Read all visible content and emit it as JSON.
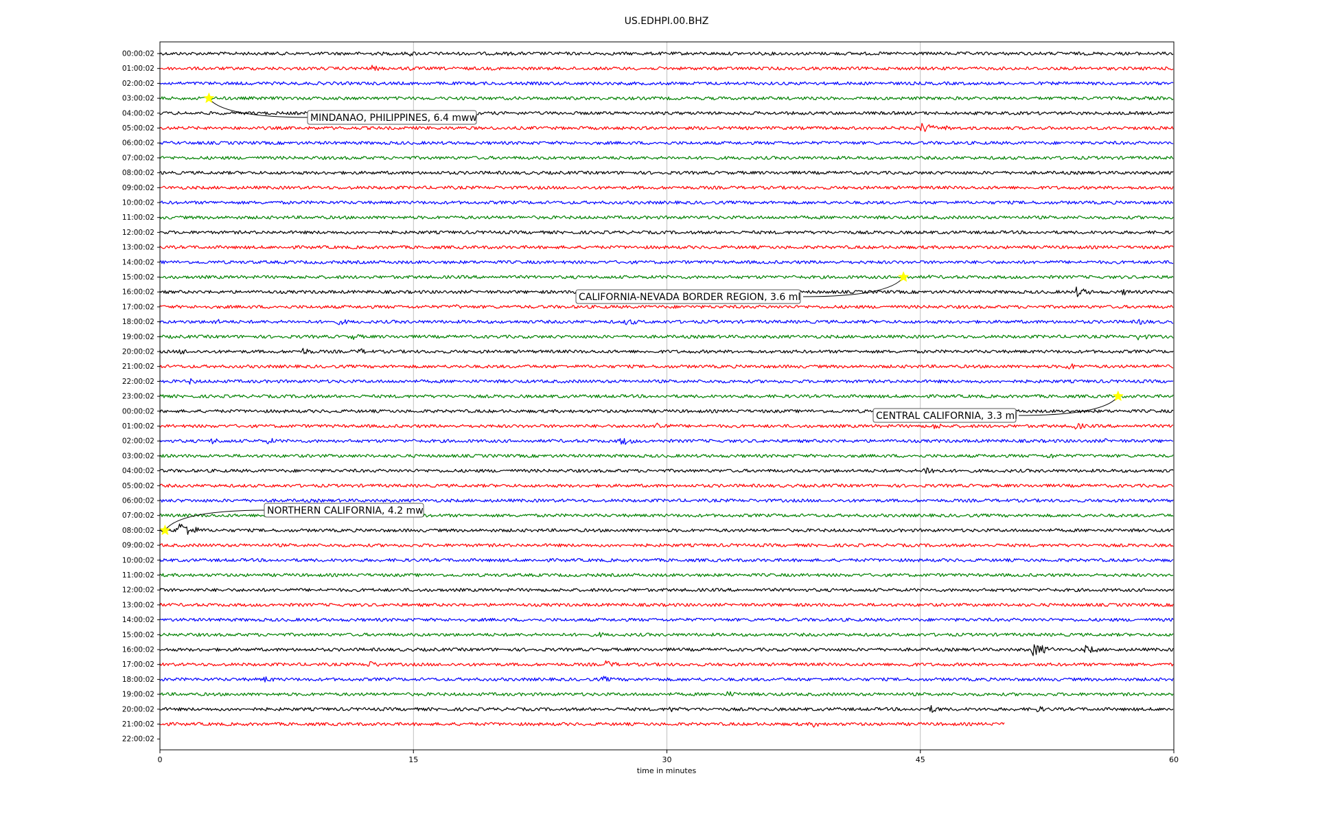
{
  "chart_data": {
    "type": "line",
    "title": "US.EDHPI.00.BHZ",
    "xlabel": "time in minutes",
    "ylabel": "",
    "xlim": [
      0,
      60
    ],
    "x_ticks": [
      0,
      15,
      30,
      45,
      60
    ],
    "x_tick_labels": [
      "0",
      "15",
      "30",
      "45",
      "60"
    ],
    "grid": "vertical",
    "line_colors": [
      "#000000",
      "#ff0000",
      "#0000ff",
      "#008000"
    ],
    "row_labels": [
      "00:00:02",
      "01:00:02",
      "02:00:02",
      "03:00:02",
      "04:00:02",
      "05:00:02",
      "06:00:02",
      "07:00:02",
      "08:00:02",
      "09:00:02",
      "10:00:02",
      "11:00:02",
      "12:00:02",
      "13:00:02",
      "14:00:02",
      "15:00:02",
      "16:00:02",
      "17:00:02",
      "18:00:02",
      "19:00:02",
      "20:00:02",
      "21:00:02",
      "22:00:02",
      "23:00:02",
      "00:00:02",
      "01:00:02",
      "02:00:02",
      "03:00:02",
      "04:00:02",
      "05:00:02",
      "06:00:02",
      "07:00:02",
      "08:00:02",
      "09:00:02",
      "10:00:02",
      "11:00:02",
      "12:00:02",
      "13:00:02",
      "14:00:02",
      "15:00:02",
      "16:00:02",
      "17:00:02",
      "18:00:02",
      "19:00:02",
      "20:00:02",
      "21:00:02",
      "22:00:02"
    ],
    "last_trace_end_minute": 50,
    "bursts": [
      {
        "row": 0,
        "minute": 14.8,
        "amp": 4
      },
      {
        "row": 0,
        "minute": 20.6,
        "amp": 3
      },
      {
        "row": 1,
        "minute": 12.5,
        "amp": 5
      },
      {
        "row": 1,
        "minute": 14.7,
        "amp": 4
      },
      {
        "row": 5,
        "minute": 45.0,
        "amp": 9
      },
      {
        "row": 5,
        "minute": 46.5,
        "amp": 4
      },
      {
        "row": 15,
        "minute": 45.5,
        "amp": 3
      },
      {
        "row": 16,
        "minute": 54.2,
        "amp": 8
      },
      {
        "row": 16,
        "minute": 57.0,
        "amp": 5
      },
      {
        "row": 17,
        "minute": 17.4,
        "amp": 4
      },
      {
        "row": 18,
        "minute": 3.2,
        "amp": 5
      },
      {
        "row": 18,
        "minute": 10.6,
        "amp": 5
      },
      {
        "row": 18,
        "minute": 27.6,
        "amp": 6
      },
      {
        "row": 18,
        "minute": 58.0,
        "amp": 5
      },
      {
        "row": 19,
        "minute": 11.4,
        "amp": 5
      },
      {
        "row": 19,
        "minute": 57.9,
        "amp": 6
      },
      {
        "row": 20,
        "minute": 1.2,
        "amp": 5
      },
      {
        "row": 20,
        "minute": 8.4,
        "amp": 6
      },
      {
        "row": 20,
        "minute": 11.8,
        "amp": 5
      },
      {
        "row": 21,
        "minute": 53.7,
        "amp": 6
      },
      {
        "row": 21,
        "minute": 59.0,
        "amp": 5
      },
      {
        "row": 22,
        "minute": 1.7,
        "amp": 5
      },
      {
        "row": 23,
        "minute": 8.6,
        "amp": 4
      },
      {
        "row": 25,
        "minute": 29.4,
        "amp": 7
      },
      {
        "row": 25,
        "minute": 45.8,
        "amp": 5
      },
      {
        "row": 25,
        "minute": 54.1,
        "amp": 6
      },
      {
        "row": 26,
        "minute": 3.1,
        "amp": 5
      },
      {
        "row": 26,
        "minute": 6.4,
        "amp": 5
      },
      {
        "row": 26,
        "minute": 27.3,
        "amp": 7
      },
      {
        "row": 26,
        "minute": 55.8,
        "amp": 4
      },
      {
        "row": 27,
        "minute": 52.6,
        "amp": 5
      },
      {
        "row": 28,
        "minute": 45.3,
        "amp": 8
      },
      {
        "row": 32,
        "minute": 1.1,
        "amp": 15
      },
      {
        "row": 39,
        "minute": 26.0,
        "amp": 4
      },
      {
        "row": 40,
        "minute": 51.7,
        "amp": 11
      },
      {
        "row": 40,
        "minute": 54.8,
        "amp": 7
      },
      {
        "row": 41,
        "minute": 12.3,
        "amp": 6
      },
      {
        "row": 41,
        "minute": 26.4,
        "amp": 6
      },
      {
        "row": 41,
        "minute": 44.1,
        "amp": 5
      },
      {
        "row": 42,
        "minute": 6.2,
        "amp": 5
      },
      {
        "row": 42,
        "minute": 26.2,
        "amp": 5
      },
      {
        "row": 43,
        "minute": 33.6,
        "amp": 5
      },
      {
        "row": 44,
        "minute": 30.2,
        "amp": 5
      },
      {
        "row": 44,
        "minute": 45.6,
        "amp": 6
      },
      {
        "row": 44,
        "minute": 51.9,
        "amp": 5
      },
      {
        "row": 45,
        "minute": 38.7,
        "amp": 5
      }
    ],
    "events": [
      {
        "label": "MINDANAO, PHILIPPINES, 6.4 mww",
        "row": 3,
        "minute": 2.9
      },
      {
        "label": "CALIFORNIA-NEVADA BORDER REGION, 3.6 ml",
        "row": 15,
        "minute": 44.0
      },
      {
        "label": "CENTRAL CALIFORNIA, 3.3 ml",
        "row": 23,
        "minute": 56.7
      },
      {
        "label": "NORTHERN CALIFORNIA, 4.2 mw",
        "row": 32,
        "minute": 0.3
      }
    ],
    "marker_color": "#ffff00"
  }
}
